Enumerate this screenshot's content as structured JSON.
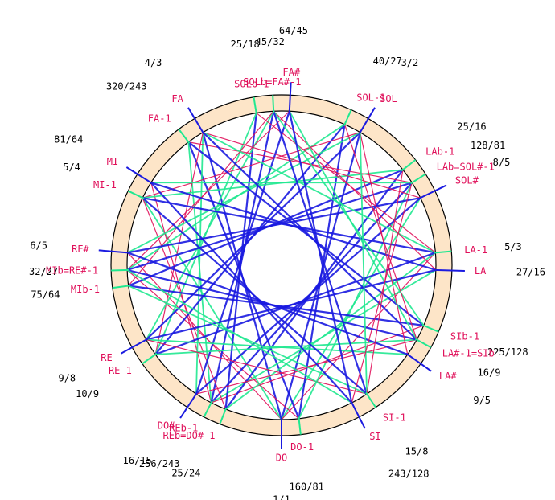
{
  "nodes": [
    {
      "label": "DO",
      "ratio": "1/1"
    },
    {
      "label": "DO-1",
      "ratio": "160/81"
    },
    {
      "label": "REb-1",
      "ratio": "256/243"
    },
    {
      "label": "REb=DO#-1",
      "ratio": "25/24"
    },
    {
      "label": "DO#",
      "ratio": "16/15"
    },
    {
      "label": "RE-1",
      "ratio": "10/9"
    },
    {
      "label": "RE",
      "ratio": "9/8"
    },
    {
      "label": "MIb-1",
      "ratio": "75/64"
    },
    {
      "label": "MIb=RE#-1",
      "ratio": "32/27"
    },
    {
      "label": "RE#",
      "ratio": "6/5"
    },
    {
      "label": "MI-1",
      "ratio": "5/4"
    },
    {
      "label": "MI",
      "ratio": "81/64"
    },
    {
      "label": "FA-1",
      "ratio": "320/243"
    },
    {
      "label": "FA",
      "ratio": "4/3"
    },
    {
      "label": "SOLb-1",
      "ratio": "25/18"
    },
    {
      "label": "SOLb=FA#-1",
      "ratio": "45/32"
    },
    {
      "label": "FA#",
      "ratio": "64/45"
    },
    {
      "label": "SOL-1",
      "ratio": "40/27"
    },
    {
      "label": "SOL",
      "ratio": "3/2"
    },
    {
      "label": "LAb-1",
      "ratio": "25/16"
    },
    {
      "label": "LAb=SOL#-1",
      "ratio": "128/81"
    },
    {
      "label": "SOL#",
      "ratio": "8/5"
    },
    {
      "label": "LA-1",
      "ratio": "5/3"
    },
    {
      "label": "LA",
      "ratio": "27/16"
    },
    {
      "label": "SIb-1",
      "ratio": "225/128"
    },
    {
      "label": "LA#-1=SIb",
      "ratio": "16/9"
    },
    {
      "label": "LA#",
      "ratio": "9/5"
    },
    {
      "label": "SI-1",
      "ratio": "15/8"
    },
    {
      "label": "SI",
      "ratio": "243/128"
    }
  ]
}
